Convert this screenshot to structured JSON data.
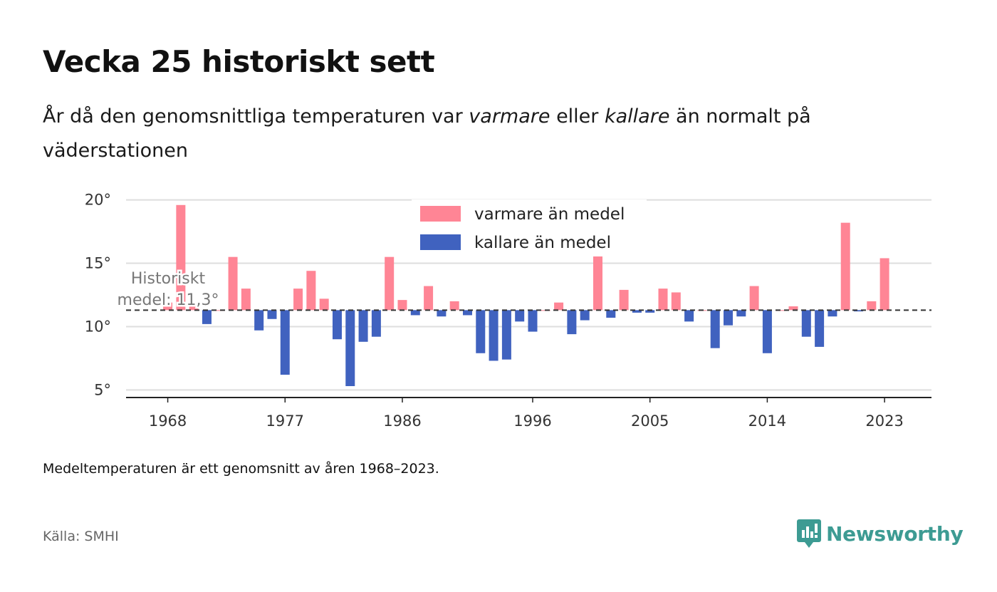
{
  "header": {
    "title": "Vecka 25 historiskt sett",
    "subtitle_part1": "År då den genomsnittliga temperaturen var ",
    "subtitle_em1": "varmare",
    "subtitle_part2": " eller ",
    "subtitle_em2": "kallare",
    "subtitle_part3": " än normalt på väderstationen"
  },
  "footer": {
    "note": "Medeltemperaturen är ett genomsnitt av åren 1968–2023.",
    "source": "Källa: SMHI",
    "logo_text": "Newsworthy"
  },
  "colors": {
    "warmer": "#ff8595",
    "colder": "#4062bf",
    "logo": "#3d9b93"
  },
  "chart_data": {
    "type": "bar",
    "baseline": 11.3,
    "baseline_label_line1": "Historiskt",
    "baseline_label_line2": "medel: 11,3°",
    "ylim": [
      4.4,
      20.6
    ],
    "yticks": [
      5,
      10,
      15,
      20
    ],
    "ytick_labels": [
      "5°",
      "10°",
      "15°",
      "20°"
    ],
    "xticks": [
      1968,
      1977,
      1986,
      1996,
      2005,
      2014,
      2023
    ],
    "xtick_labels": [
      "1968",
      "1977",
      "1986",
      "1996",
      "2005",
      "2014",
      "2023"
    ],
    "xlim": [
      1964.8,
      2026.6
    ],
    "grid": true,
    "legend_position": "top-center",
    "series": [
      {
        "name": "varmare än medel",
        "color": "#ff8595"
      },
      {
        "name": "kallare än medel",
        "color": "#4062bf"
      }
    ],
    "x": [
      1968,
      1969,
      1970,
      1971,
      1972,
      1973,
      1974,
      1975,
      1976,
      1977,
      1978,
      1979,
      1980,
      1981,
      1982,
      1983,
      1984,
      1985,
      1986,
      1987,
      1988,
      1989,
      1990,
      1991,
      1992,
      1993,
      1994,
      1995,
      1996,
      1997,
      1998,
      1999,
      2000,
      2001,
      2002,
      2003,
      2004,
      2005,
      2006,
      2007,
      2008,
      2009,
      2010,
      2011,
      2012,
      2013,
      2014,
      2015,
      2016,
      2017,
      2018,
      2019,
      2020,
      2021,
      2022,
      2023
    ],
    "values": [
      11.9,
      19.6,
      11.9,
      10.2,
      11.3,
      15.5,
      13.0,
      9.7,
      10.6,
      6.2,
      13.0,
      14.4,
      12.2,
      9.0,
      5.3,
      8.8,
      9.2,
      15.5,
      12.1,
      10.9,
      13.2,
      10.8,
      12.0,
      10.9,
      7.9,
      7.3,
      7.4,
      10.4,
      9.6,
      11.3,
      11.9,
      9.4,
      10.5,
      15.8,
      10.7,
      12.9,
      11.1,
      11.1,
      13.0,
      12.7,
      10.4,
      11.3,
      8.3,
      10.1,
      10.8,
      13.2,
      7.9,
      11.3,
      11.6,
      9.2,
      8.4,
      10.8,
      18.2,
      11.2,
      12.0,
      15.4
    ]
  }
}
